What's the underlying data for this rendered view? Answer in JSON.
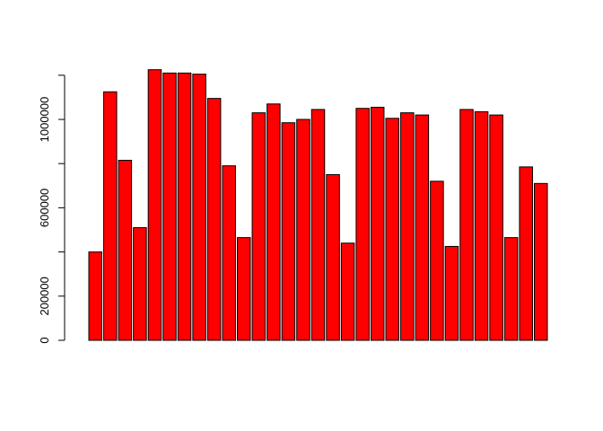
{
  "chart_data": {
    "type": "bar",
    "title": "",
    "xlabel": "",
    "ylabel": "",
    "ylim": [
      0,
      1200000
    ],
    "yticks": [
      0,
      200000,
      600000,
      1000000
    ],
    "ytick_labels": [
      "0",
      "200000",
      "600000",
      "1000000"
    ],
    "values": [
      400000,
      1125000,
      815000,
      510000,
      1225000,
      1210000,
      1210000,
      1205000,
      1095000,
      790000,
      465000,
      1030000,
      1070000,
      985000,
      1000000,
      1045000,
      750000,
      440000,
      1050000,
      1055000,
      1005000,
      1030000,
      1020000,
      720000,
      425000,
      1045000,
      1035000,
      1020000,
      465000,
      785000,
      710000
    ],
    "bar_color": "#FF0000",
    "bar_border": "#000000",
    "grid": false,
    "legend": "none"
  }
}
